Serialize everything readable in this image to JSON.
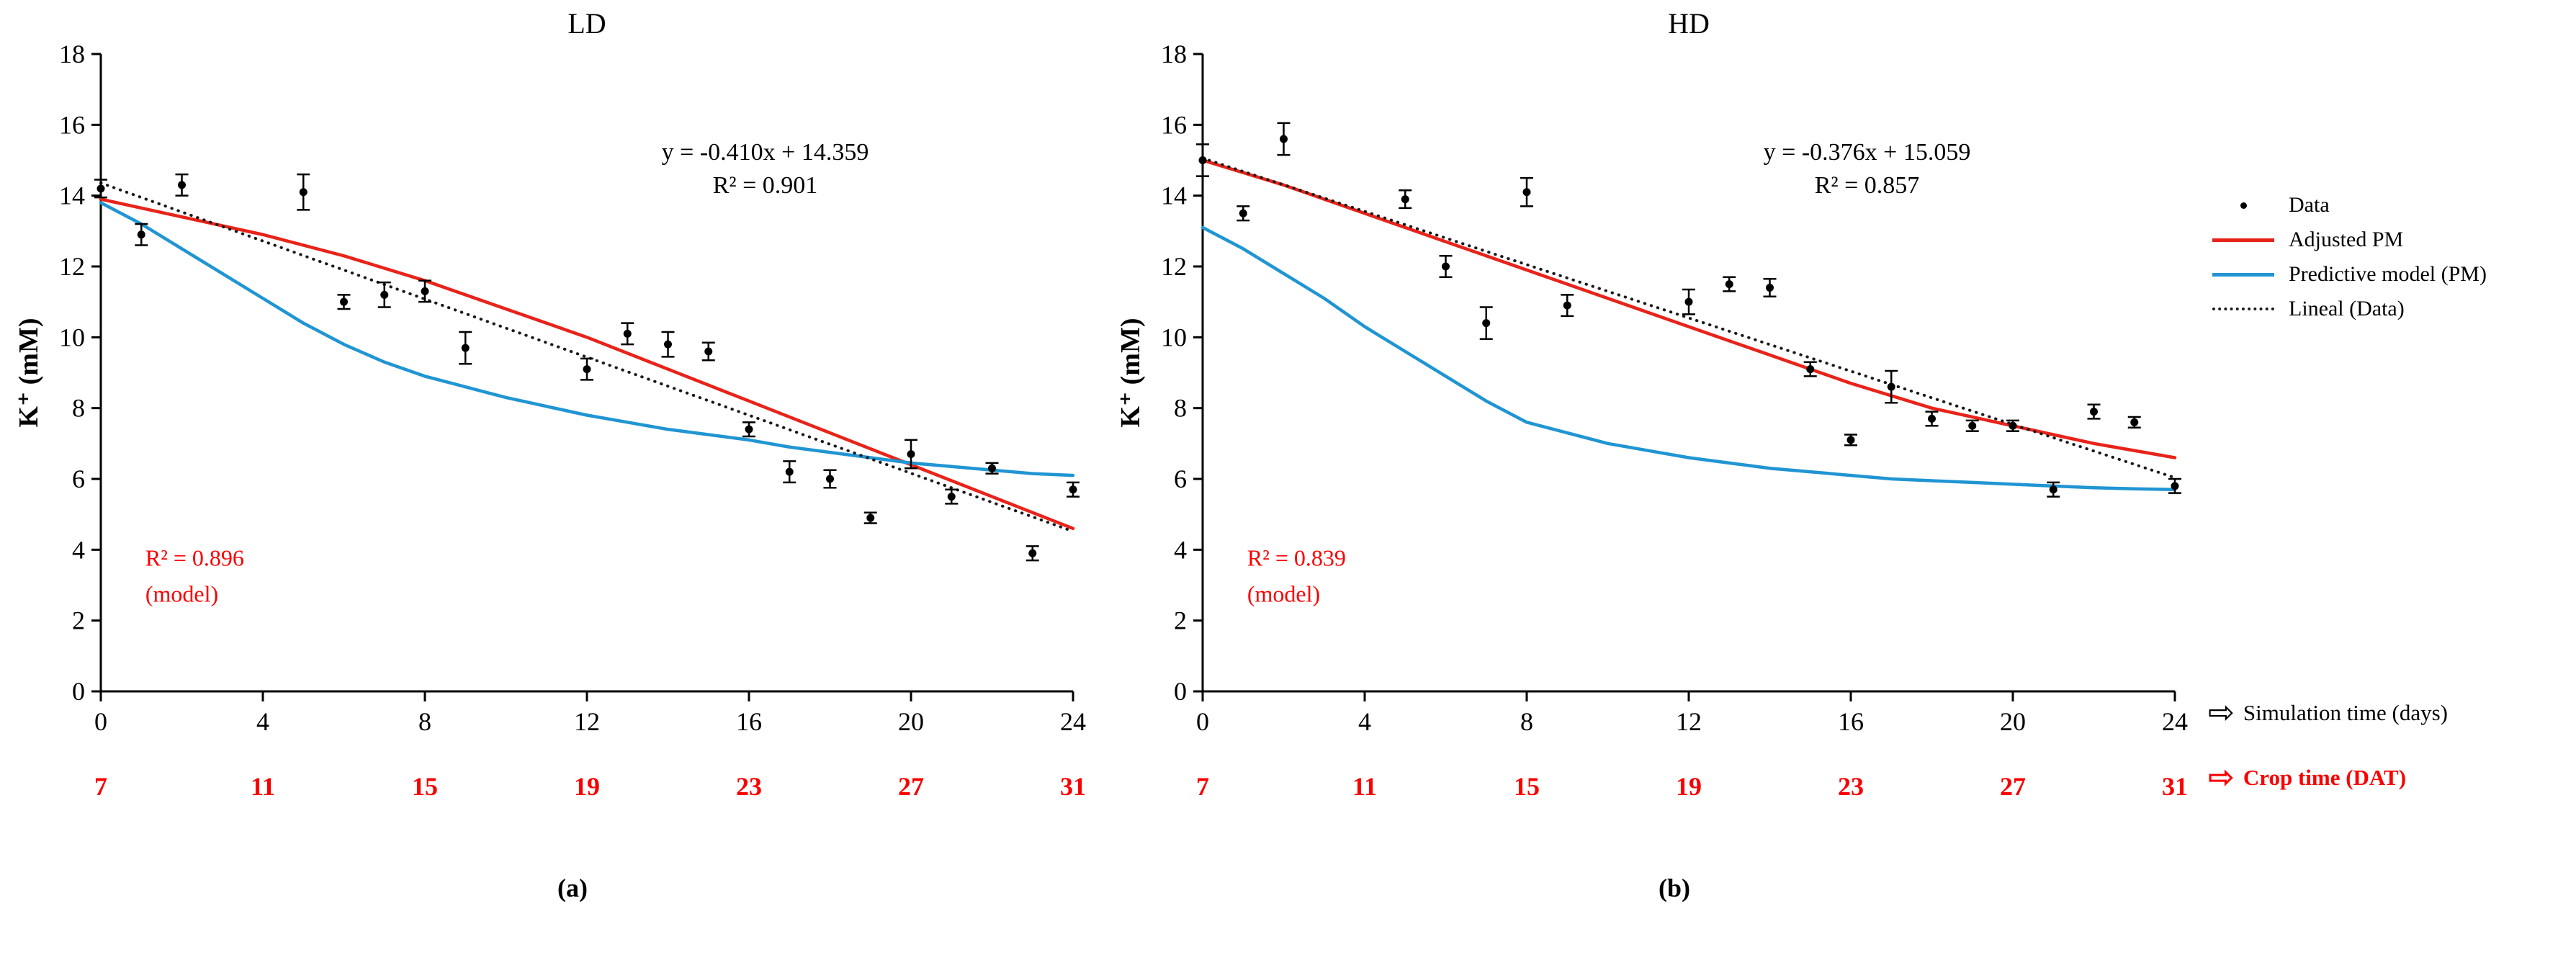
{
  "colors": {
    "adjusted_pm_red": "#e8231a",
    "predictive_blue": "#2095d3",
    "axis_red": "#fa0000",
    "lineal_black": "#1a1a1a"
  },
  "legend": {
    "arrow_glyph": "⇨",
    "items": [
      {
        "label": "Data",
        "marker": "dot"
      },
      {
        "label": "Adjusted PM",
        "marker": "red-line"
      },
      {
        "label": "Predictive model (PM)",
        "marker": "blue-line"
      },
      {
        "label": "Lineal (Data)",
        "marker": "dotted-line"
      }
    ],
    "axis_arrows": [
      {
        "label": "Simulation time (days)",
        "color": "black"
      },
      {
        "label": "Crop time (DAT)",
        "color": "red"
      }
    ]
  },
  "chart_data": [
    {
      "type": "scatter",
      "title": "LD",
      "panel_label": "(a)",
      "ylabel": "K⁺ (mM)",
      "xlim": [
        0,
        24
      ],
      "ylim": [
        0,
        18
      ],
      "x_ticks": [
        0,
        4,
        8,
        12,
        16,
        20,
        24
      ],
      "y_ticks": [
        0,
        2,
        4,
        6,
        8,
        10,
        12,
        14,
        16,
        18
      ],
      "crop_tick_labels": [
        "7",
        "11",
        "15",
        "19",
        "23",
        "27",
        "31"
      ],
      "equation_line1": "y = -0.410x + 14.359",
      "equation_line2": "R² = 0.901",
      "model_r2_line1": "R² = 0.896",
      "model_r2_line2": "(model)",
      "data_points": [
        [
          0,
          14.2,
          0.25
        ],
        [
          1,
          12.9,
          0.3
        ],
        [
          2,
          14.3,
          0.3
        ],
        [
          5,
          14.1,
          0.5
        ],
        [
          6,
          11.0,
          0.2
        ],
        [
          7,
          11.2,
          0.35
        ],
        [
          8,
          11.3,
          0.3
        ],
        [
          9,
          9.7,
          0.45
        ],
        [
          12,
          9.1,
          0.3
        ],
        [
          13,
          10.1,
          0.3
        ],
        [
          14,
          9.8,
          0.35
        ],
        [
          15,
          9.6,
          0.25
        ],
        [
          16,
          7.4,
          0.2
        ],
        [
          17,
          6.2,
          0.3
        ],
        [
          18,
          6.0,
          0.25
        ],
        [
          19,
          4.9,
          0.15
        ],
        [
          20,
          6.7,
          0.4
        ],
        [
          21,
          5.5,
          0.2
        ],
        [
          22,
          6.3,
          0.15
        ],
        [
          23,
          3.9,
          0.2
        ],
        [
          24,
          5.7,
          0.2
        ]
      ],
      "series": [
        {
          "name": "Adjusted PM",
          "color": "adjusted_pm_red",
          "points": [
            [
              0,
              13.9
            ],
            [
              2,
              13.4
            ],
            [
              4,
              12.9
            ],
            [
              6,
              12.3
            ],
            [
              8,
              11.6
            ],
            [
              10,
              10.8
            ],
            [
              12,
              10.0
            ],
            [
              14,
              9.1
            ],
            [
              16,
              8.2
            ],
            [
              18,
              7.3
            ],
            [
              20,
              6.4
            ],
            [
              22,
              5.5
            ],
            [
              24,
              4.6
            ]
          ]
        },
        {
          "name": "Predictive model (PM)",
          "color": "predictive_blue",
          "points": [
            [
              0,
              13.8
            ],
            [
              1,
              13.2
            ],
            [
              2,
              12.5
            ],
            [
              3,
              11.8
            ],
            [
              4,
              11.1
            ],
            [
              5,
              10.4
            ],
            [
              6,
              9.8
            ],
            [
              7,
              9.3
            ],
            [
              8,
              8.9
            ],
            [
              9,
              8.6
            ],
            [
              10,
              8.3
            ],
            [
              11,
              8.05
            ],
            [
              12,
              7.8
            ],
            [
              13,
              7.6
            ],
            [
              14,
              7.4
            ],
            [
              15,
              7.25
            ],
            [
              16,
              7.1
            ],
            [
              17,
              6.9
            ],
            [
              18,
              6.75
            ],
            [
              19,
              6.6
            ],
            [
              20,
              6.45
            ],
            [
              21,
              6.35
            ],
            [
              22,
              6.25
            ],
            [
              23,
              6.15
            ],
            [
              24,
              6.1
            ]
          ]
        },
        {
          "name": "Lineal (Data)",
          "color": "lineal_black",
          "style": "dotted",
          "slope": -0.41,
          "intercept": 14.359
        }
      ]
    },
    {
      "type": "scatter",
      "title": "HD",
      "panel_label": "(b)",
      "ylabel": "K⁺ (mM)",
      "xlim": [
        0,
        24
      ],
      "ylim": [
        0,
        18
      ],
      "x_ticks": [
        0,
        4,
        8,
        12,
        16,
        20,
        24
      ],
      "y_ticks": [
        0,
        2,
        4,
        6,
        8,
        10,
        12,
        14,
        16,
        18
      ],
      "crop_tick_labels": [
        "7",
        "11",
        "15",
        "19",
        "23",
        "27",
        "31"
      ],
      "equation_line1": "y = -0.376x + 15.059",
      "equation_line2": "R² = 0.857",
      "model_r2_line1": "R² = 0.839",
      "model_r2_line2": "(model)",
      "data_points": [
        [
          0,
          15.0,
          0.45
        ],
        [
          1,
          13.5,
          0.2
        ],
        [
          2,
          15.6,
          0.45
        ],
        [
          5,
          13.9,
          0.25
        ],
        [
          6,
          12.0,
          0.3
        ],
        [
          7,
          10.4,
          0.45
        ],
        [
          8,
          14.1,
          0.4
        ],
        [
          9,
          10.9,
          0.3
        ],
        [
          12,
          11.0,
          0.35
        ],
        [
          13,
          11.5,
          0.2
        ],
        [
          14,
          11.4,
          0.25
        ],
        [
          15,
          9.1,
          0.2
        ],
        [
          16,
          7.1,
          0.15
        ],
        [
          17,
          8.6,
          0.45
        ],
        [
          18,
          7.7,
          0.2
        ],
        [
          19,
          7.5,
          0.15
        ],
        [
          20,
          7.5,
          0.15
        ],
        [
          21,
          5.7,
          0.2
        ],
        [
          22,
          7.9,
          0.2
        ],
        [
          23,
          7.6,
          0.15
        ],
        [
          24,
          5.8,
          0.2
        ]
      ],
      "series": [
        {
          "name": "Adjusted PM",
          "color": "adjusted_pm_red",
          "points": [
            [
              0,
              15.0
            ],
            [
              2,
              14.3
            ],
            [
              4,
              13.5
            ],
            [
              6,
              12.7
            ],
            [
              8,
              11.9
            ],
            [
              10,
              11.1
            ],
            [
              12,
              10.3
            ],
            [
              14,
              9.5
            ],
            [
              16,
              8.7
            ],
            [
              18,
              8.0
            ],
            [
              20,
              7.5
            ],
            [
              22,
              7.0
            ],
            [
              24,
              6.6
            ]
          ]
        },
        {
          "name": "Predictive model (PM)",
          "color": "predictive_blue",
          "points": [
            [
              0,
              13.1
            ],
            [
              1,
              12.5
            ],
            [
              2,
              11.8
            ],
            [
              3,
              11.1
            ],
            [
              4,
              10.3
            ],
            [
              5,
              9.6
            ],
            [
              6,
              8.9
            ],
            [
              7,
              8.2
            ],
            [
              8,
              7.6
            ],
            [
              9,
              7.3
            ],
            [
              10,
              7.0
            ],
            [
              11,
              6.8
            ],
            [
              12,
              6.6
            ],
            [
              13,
              6.45
            ],
            [
              14,
              6.3
            ],
            [
              15,
              6.2
            ],
            [
              16,
              6.1
            ],
            [
              17,
              6.0
            ],
            [
              18,
              5.95
            ],
            [
              19,
              5.9
            ],
            [
              20,
              5.85
            ],
            [
              21,
              5.8
            ],
            [
              22,
              5.75
            ],
            [
              23,
              5.72
            ],
            [
              24,
              5.7
            ]
          ]
        },
        {
          "name": "Lineal (Data)",
          "color": "lineal_black",
          "style": "dotted",
          "slope": -0.376,
          "intercept": 15.059
        }
      ]
    }
  ]
}
